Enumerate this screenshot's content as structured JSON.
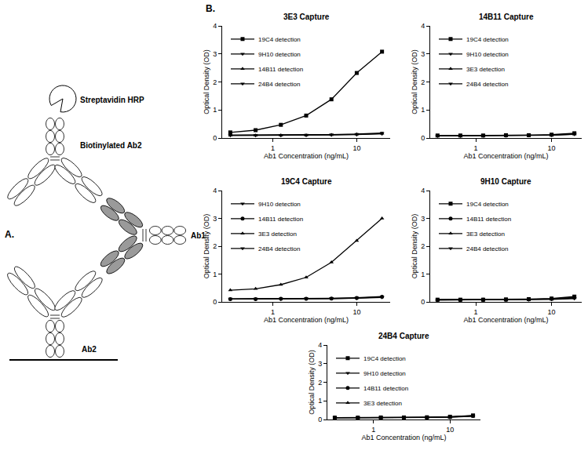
{
  "diagram": {
    "panel_label": "A.",
    "labels": {
      "enzyme": "Streptavidin HRP",
      "detection": "Biotinylated Ab2",
      "analyte": "Ab1",
      "capture": "Ab2"
    }
  },
  "charts_panel_label": "B.",
  "chart_data": [
    {
      "type": "line",
      "title": "3E3 Capture",
      "x_label": "Ab1 Concentration (ng/mL)",
      "y_label": "Optical Density (OD)",
      "log": "x",
      "grid": false,
      "legend": "upper left",
      "xlim": [
        0.25,
        25
      ],
      "xticks": [
        1,
        10
      ],
      "ylim": [
        0,
        4
      ],
      "yticks": [
        0,
        1,
        2,
        3,
        4
      ],
      "x": [
        0.3125,
        0.625,
        1.25,
        2.5,
        5,
        10,
        20
      ],
      "series": [
        {
          "name": "19C4 detection",
          "color": "#000000",
          "marker": "square",
          "values": [
            0.2,
            0.28,
            0.47,
            0.8,
            1.38,
            2.32,
            3.08
          ]
        },
        {
          "name": "9H10 detection",
          "color": "#000000",
          "marker": "triangle-down",
          "values": [
            0.1,
            0.1,
            0.1,
            0.11,
            0.12,
            0.14,
            0.18
          ]
        },
        {
          "name": "14B11 detection",
          "color": "#000000",
          "marker": "triangle-up",
          "values": [
            0.09,
            0.09,
            0.1,
            0.1,
            0.11,
            0.13,
            0.16
          ]
        },
        {
          "name": "24B4 detection",
          "color": "#000000",
          "marker": "triangle-down",
          "values": [
            0.1,
            0.1,
            0.1,
            0.1,
            0.11,
            0.12,
            0.15
          ]
        }
      ]
    },
    {
      "type": "line",
      "title": "14B11 Capture",
      "x_label": "Ab1 Concentration (ng/mL)",
      "y_label": "Optical Density (OD)",
      "log": "x",
      "grid": false,
      "legend": "upper left",
      "xlim": [
        0.25,
        25
      ],
      "xticks": [
        1,
        10
      ],
      "ylim": [
        0,
        4
      ],
      "yticks": [
        0,
        1,
        2,
        3,
        4
      ],
      "x": [
        0.3125,
        0.625,
        1.25,
        2.5,
        5,
        10,
        20
      ],
      "series": [
        {
          "name": "19C4 detection",
          "color": "#000000",
          "marker": "square",
          "values": [
            0.09,
            0.09,
            0.09,
            0.1,
            0.1,
            0.12,
            0.17
          ]
        },
        {
          "name": "9H10 detection",
          "color": "#000000",
          "marker": "triangle-down",
          "values": [
            0.08,
            0.08,
            0.09,
            0.09,
            0.1,
            0.11,
            0.15
          ]
        },
        {
          "name": "3E3 detection",
          "color": "#000000",
          "marker": "triangle-up",
          "values": [
            0.08,
            0.08,
            0.08,
            0.09,
            0.09,
            0.1,
            0.14
          ]
        },
        {
          "name": "24B4 detection",
          "color": "#000000",
          "marker": "triangle-down",
          "values": [
            0.08,
            0.08,
            0.08,
            0.08,
            0.09,
            0.1,
            0.13
          ]
        }
      ]
    },
    {
      "type": "line",
      "title": "19C4 Capture",
      "x_label": "Ab1 Concentration (ng/mL)",
      "y_label": "Optical Density (OD)",
      "log": "x",
      "grid": false,
      "legend": "upper left",
      "xlim": [
        0.25,
        25
      ],
      "xticks": [
        1,
        10
      ],
      "ylim": [
        0,
        4
      ],
      "yticks": [
        0,
        1,
        2,
        3,
        4
      ],
      "x": [
        0.3125,
        0.625,
        1.25,
        2.5,
        5,
        10,
        20
      ],
      "series": [
        {
          "name": "9H10 detection",
          "color": "#000000",
          "marker": "triangle-down",
          "values": [
            0.11,
            0.11,
            0.11,
            0.12,
            0.13,
            0.15,
            0.19
          ]
        },
        {
          "name": "14B11 detection",
          "color": "#000000",
          "marker": "circle",
          "values": [
            0.1,
            0.1,
            0.11,
            0.11,
            0.12,
            0.14,
            0.18
          ]
        },
        {
          "name": "3E3 detection",
          "color": "#000000",
          "marker": "triangle-up",
          "values": [
            0.42,
            0.47,
            0.62,
            0.88,
            1.42,
            2.2,
            3.0
          ]
        },
        {
          "name": "24B4 detection",
          "color": "#000000",
          "marker": "triangle-down",
          "values": [
            0.1,
            0.1,
            0.1,
            0.11,
            0.12,
            0.13,
            0.16
          ]
        }
      ]
    },
    {
      "type": "line",
      "title": "9H10 Capture",
      "x_label": "Ab1 Concentration (ng/mL)",
      "y_label": "Optical Density (OD)",
      "log": "x",
      "grid": false,
      "legend": "upper left",
      "xlim": [
        0.25,
        25
      ],
      "xticks": [
        1,
        10
      ],
      "ylim": [
        0,
        4
      ],
      "yticks": [
        0,
        1,
        2,
        3,
        4
      ],
      "x": [
        0.3125,
        0.625,
        1.25,
        2.5,
        5,
        10,
        20
      ],
      "series": [
        {
          "name": "19C4 detection",
          "color": "#000000",
          "marker": "square",
          "values": [
            0.08,
            0.08,
            0.08,
            0.09,
            0.1,
            0.12,
            0.19
          ]
        },
        {
          "name": "14B11 detection",
          "color": "#000000",
          "marker": "circle",
          "values": [
            0.07,
            0.07,
            0.08,
            0.08,
            0.09,
            0.11,
            0.16
          ]
        },
        {
          "name": "3E3 detection",
          "color": "#000000",
          "marker": "triangle-up",
          "values": [
            0.08,
            0.08,
            0.08,
            0.08,
            0.09,
            0.1,
            0.14
          ]
        },
        {
          "name": "24B4 detection",
          "color": "#000000",
          "marker": "triangle-down",
          "values": [
            0.07,
            0.07,
            0.07,
            0.08,
            0.08,
            0.09,
            0.12
          ]
        }
      ]
    },
    {
      "type": "line",
      "title": "24B4 Capture",
      "x_label": "Ab1 Concentration (ng/mL)",
      "y_label": "Optical Density (OD)",
      "log": "x",
      "grid": false,
      "legend": "upper left",
      "xlim": [
        0.25,
        25
      ],
      "xticks": [
        1,
        10
      ],
      "ylim": [
        0,
        4
      ],
      "yticks": [
        0,
        1,
        2,
        3,
        4
      ],
      "x": [
        0.3125,
        0.625,
        1.25,
        2.5,
        5,
        10,
        20
      ],
      "series": [
        {
          "name": "19C4 detection",
          "color": "#000000",
          "marker": "square",
          "values": [
            0.1,
            0.1,
            0.11,
            0.11,
            0.12,
            0.15,
            0.22
          ]
        },
        {
          "name": "9H10 detection",
          "color": "#000000",
          "marker": "triangle-down",
          "values": [
            0.1,
            0.1,
            0.1,
            0.11,
            0.12,
            0.14,
            0.2
          ]
        },
        {
          "name": "14B11 detection",
          "color": "#000000",
          "marker": "circle",
          "values": [
            0.09,
            0.09,
            0.1,
            0.1,
            0.11,
            0.13,
            0.19
          ]
        },
        {
          "name": "3E3 detection",
          "color": "#000000",
          "marker": "triangle-up",
          "values": [
            0.09,
            0.09,
            0.09,
            0.1,
            0.11,
            0.12,
            0.17
          ]
        }
      ]
    }
  ]
}
